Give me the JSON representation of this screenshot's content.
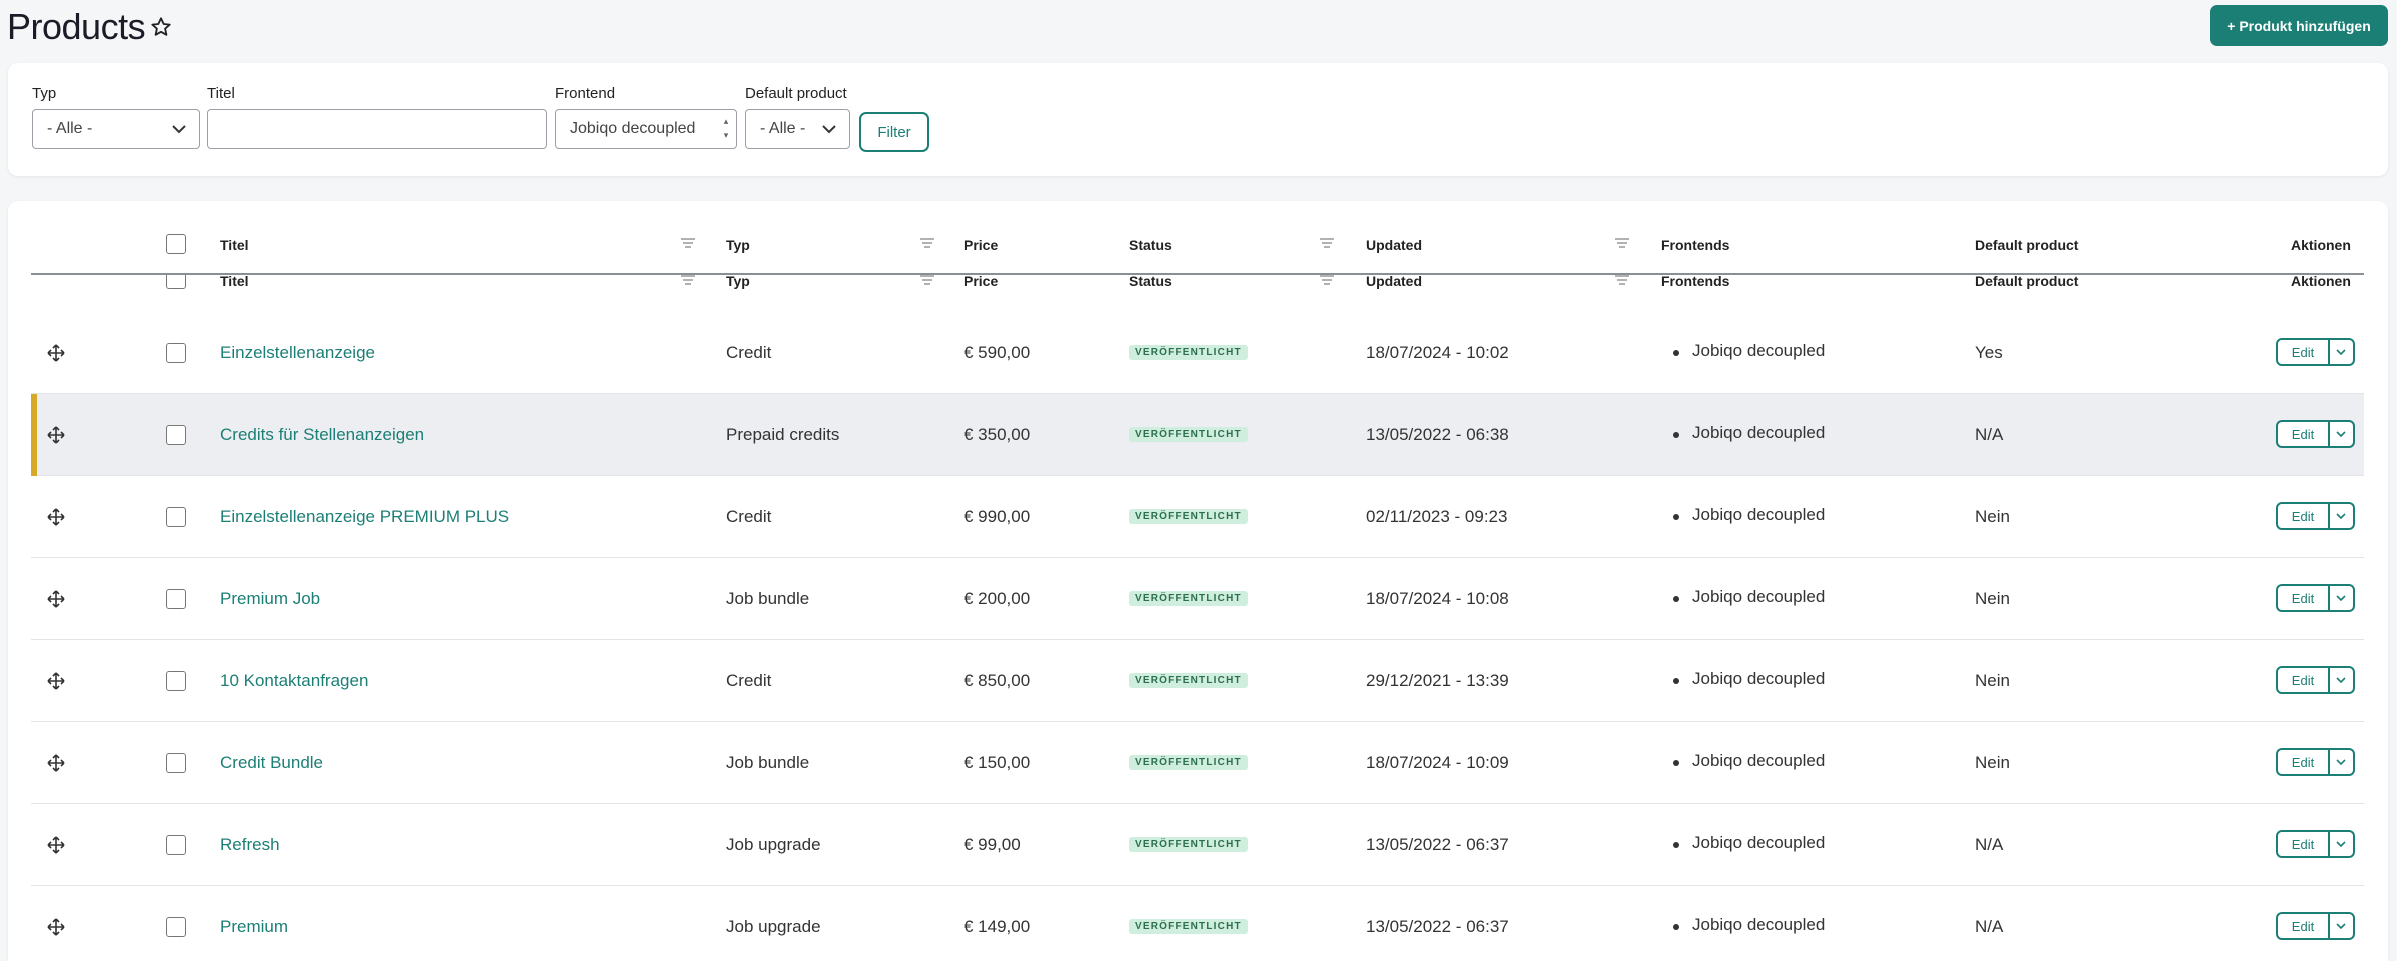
{
  "header": {
    "title": "Products",
    "add_button": "+ Produkt hinzufügen"
  },
  "filters": {
    "typ_label": "Typ",
    "typ_value": "- Alle -",
    "titel_label": "Titel",
    "titel_value": "",
    "frontend_label": "Frontend",
    "frontend_value": "Jobiqo decoupled",
    "default_label": "Default product",
    "default_value": "- Alle -",
    "filter_button": "Filter"
  },
  "table": {
    "columns": {
      "titel": "Titel",
      "typ": "Typ",
      "price": "Price",
      "status": "Status",
      "updated": "Updated",
      "frontends": "Frontends",
      "default": "Default product",
      "aktionen": "Aktionen"
    },
    "edit_label": "Edit",
    "rows": [
      {
        "title": "Einzelstellenanzeige",
        "typ": "Credit",
        "price": "€ 590,00",
        "status": "VERÖFFENTLICHT",
        "updated": "18/07/2024 - 10:02",
        "frontend": "Jobiqo decoupled",
        "default": "Yes"
      },
      {
        "title": "Credits für Stellenanzeigen",
        "typ": "Prepaid credits",
        "price": "€ 350,00",
        "status": "VERÖFFENTLICHT",
        "updated": "13/05/2022 - 06:38",
        "frontend": "Jobiqo decoupled",
        "default": "N/A"
      },
      {
        "title": "Einzelstellenanzeige PREMIUM PLUS",
        "typ": "Credit",
        "price": "€ 990,00",
        "status": "VERÖFFENTLICHT",
        "updated": "02/11/2023 - 09:23",
        "frontend": "Jobiqo decoupled",
        "default": "Nein"
      },
      {
        "title": "Premium Job",
        "typ": "Job bundle",
        "price": "€ 200,00",
        "status": "VERÖFFENTLICHT",
        "updated": "18/07/2024 - 10:08",
        "frontend": "Jobiqo decoupled",
        "default": "Nein"
      },
      {
        "title": "10 Kontaktanfragen",
        "typ": "Credit",
        "price": "€ 850,00",
        "status": "VERÖFFENTLICHT",
        "updated": "29/12/2021 - 13:39",
        "frontend": "Jobiqo decoupled",
        "default": "Nein"
      },
      {
        "title": "Credit Bundle",
        "typ": "Job bundle",
        "price": "€ 150,00",
        "status": "VERÖFFENTLICHT",
        "updated": "18/07/2024 - 10:09",
        "frontend": "Jobiqo decoupled",
        "default": "Nein"
      },
      {
        "title": "Refresh",
        "typ": "Job upgrade",
        "price": "€ 99,00",
        "status": "VERÖFFENTLICHT",
        "updated": "13/05/2022 - 06:37",
        "frontend": "Jobiqo decoupled",
        "default": "N/A"
      },
      {
        "title": "Premium",
        "typ": "Job upgrade",
        "price": "€ 149,00",
        "status": "VERÖFFENTLICHT",
        "updated": "13/05/2022 - 06:37",
        "frontend": "Jobiqo decoupled",
        "default": "N/A"
      }
    ]
  },
  "colors": {
    "accent": "#1c7f75",
    "highlight_bar": "#d6a928",
    "badge_bg": "#cfeedd"
  },
  "icons": [
    "star-icon",
    "chevron-down-icon",
    "sort-icon",
    "drag-handle-icon"
  ]
}
